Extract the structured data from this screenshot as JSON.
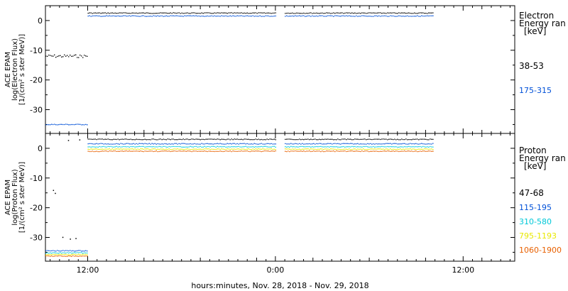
{
  "chart_data": [
    {
      "type": "scatter",
      "panel": "electron",
      "ylabel": [
        "ACE EPAM",
        "log(Electron Flux)",
        "[1/(cm² s ster MeV)]"
      ],
      "ylim": [
        -38,
        5
      ],
      "yticks": [
        0,
        -10,
        -20,
        -30
      ],
      "ytick_labels": [
        "0",
        "-10",
        "-20",
        "-30"
      ],
      "legend_title": [
        "Electron",
        "Energy ran",
        "[keV]"
      ],
      "series": [
        {
          "name": "38-53",
          "color": "#000000",
          "segments": [
            {
              "x": [
                0.0,
                4.5
              ],
              "y": -12.0,
              "jitter": 1.0
            },
            {
              "x": [
                4.5,
                24.5
              ],
              "y": 2.5
            },
            {
              "x": [
                25.5,
                41.3
              ],
              "y": 2.5
            }
          ]
        },
        {
          "name": "175-315",
          "color": "#0050d8",
          "segments": [
            {
              "x": [
                0.0,
                4.5
              ],
              "y": -35.0
            },
            {
              "x": [
                4.5,
                24.5
              ],
              "y": 1.5
            },
            {
              "x": [
                25.5,
                41.3
              ],
              "y": 1.5
            }
          ]
        }
      ]
    },
    {
      "type": "scatter",
      "panel": "proton",
      "ylabel": [
        "ACE EPAM",
        "log(Proton Flux)",
        "[1/(cm² s ster MeV)]"
      ],
      "ylim": [
        -38,
        5
      ],
      "yticks": [
        0,
        -10,
        -20,
        -30
      ],
      "ytick_labels": [
        "0",
        "-10",
        "-20",
        "-30"
      ],
      "legend_title": [
        "Proton",
        "Energy ran",
        "[keV]"
      ],
      "series": [
        {
          "name": "47-68",
          "color": "#000000",
          "segments": [
            {
              "x": [
                4.5,
                24.5
              ],
              "y": 3.0
            },
            {
              "x": [
                25.5,
                41.3
              ],
              "y": 3.0
            }
          ]
        },
        {
          "name": "115-195",
          "color": "#0050d8",
          "segments": [
            {
              "x": [
                0.0,
                4.5
              ],
              "y": -34.5
            },
            {
              "x": [
                4.5,
                24.5
              ],
              "y": 1.5
            },
            {
              "x": [
                25.5,
                41.3
              ],
              "y": 1.5
            }
          ]
        },
        {
          "name": "310-580",
          "color": "#00c8d8",
          "segments": [
            {
              "x": [
                0.0,
                4.5
              ],
              "y": -35.2
            },
            {
              "x": [
                4.5,
                24.5
              ],
              "y": 0.5
            },
            {
              "x": [
                25.5,
                41.3
              ],
              "y": 0.5
            }
          ]
        },
        {
          "name": "795-1193",
          "color": "#e8e800",
          "segments": [
            {
              "x": [
                0.0,
                4.5
              ],
              "y": -35.8
            },
            {
              "x": [
                4.5,
                24.5
              ],
              "y": -0.3
            },
            {
              "x": [
                25.5,
                41.3
              ],
              "y": -0.3
            }
          ]
        },
        {
          "name": "1060-1900",
          "color": "#e86000",
          "segments": [
            {
              "x": [
                0.0,
                4.5
              ],
              "y": -36.3
            },
            {
              "x": [
                4.5,
                24.5
              ],
              "y": -1.0
            },
            {
              "x": [
                25.5,
                41.3
              ],
              "y": -1.0
            }
          ]
        }
      ],
      "scattered_points": [
        {
          "x": 1.0,
          "y": -15.0
        },
        {
          "x": 0.8,
          "y": -14.0
        },
        {
          "x": 1.8,
          "y": -29.8
        },
        {
          "x": 2.6,
          "y": -30.4
        },
        {
          "x": 3.2,
          "y": -30.2
        },
        {
          "x": 2.4,
          "y": 2.8
        },
        {
          "x": 3.6,
          "y": 3.0
        }
      ]
    }
  ],
  "x_axis": {
    "xlabel": "hours:minutes, Nov. 28, 2018 - Nov. 29, 2018",
    "xlim": [
      0,
      50
    ],
    "tick_positions": [
      4.5,
      24.5,
      44.5
    ],
    "tick_labels": [
      "12:00",
      "0:00",
      "12:00"
    ]
  }
}
